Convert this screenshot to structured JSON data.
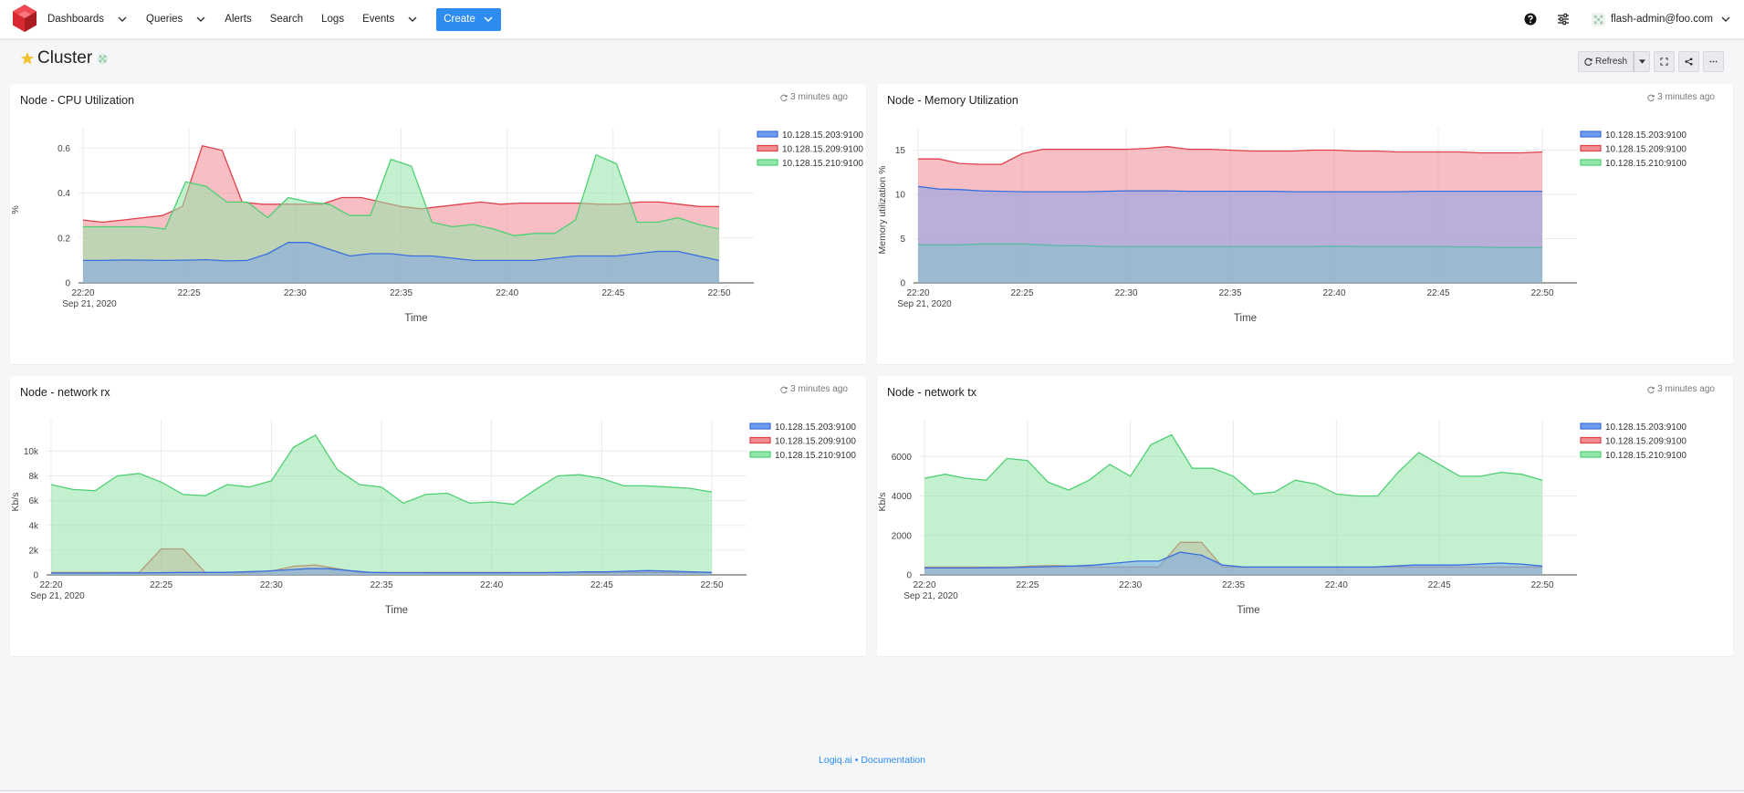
{
  "nav": {
    "items": [
      {
        "label": "Dashboards",
        "has_dropdown": true
      },
      {
        "label": "Queries",
        "has_dropdown": true
      },
      {
        "label": "Alerts",
        "has_dropdown": false
      },
      {
        "label": "Search",
        "has_dropdown": false
      },
      {
        "label": "Logs",
        "has_dropdown": false
      },
      {
        "label": "Events",
        "has_dropdown": true
      }
    ],
    "create_label": "Create",
    "user_label": "flash-admin@foo.com",
    "icons": [
      "help-icon",
      "sliders-icon"
    ]
  },
  "page": {
    "title": "Cluster",
    "refresh_label": "Refresh"
  },
  "colors": {
    "accent": "#2d8cf0",
    "series": [
      "#3b6fe0",
      "#e0414b",
      "#4fcf73"
    ],
    "fills": [
      "#6f9cf2",
      "#f08b91",
      "#92e6a8"
    ]
  },
  "panels": [
    {
      "title": "Node - CPU Utilization",
      "timestamp": "3 minutes ago",
      "chart_data": {
        "type": "area",
        "xlabel": "Time",
        "ylabel": "%",
        "x_ticks": [
          "22:20",
          "22:25",
          "22:30",
          "22:35",
          "22:40",
          "22:45",
          "22:50"
        ],
        "date_label": "Sep 21, 2020",
        "ylim": [
          0,
          0.65
        ],
        "y_ticks": [
          0,
          0.2,
          0.4,
          0.6
        ],
        "y_tick_labels": [
          "0",
          "0.2",
          "0.4",
          "0.6"
        ],
        "series": [
          {
            "name": "10.128.15.203:9100",
            "values": [
              0.1,
              0.1,
              0.102,
              0.101,
              0.1,
              0.101,
              0.103,
              0.098,
              0.1,
              0.13,
              0.18,
              0.18,
              0.15,
              0.12,
              0.13,
              0.13,
              0.12,
              0.12,
              0.11,
              0.1,
              0.1,
              0.1,
              0.1,
              0.11,
              0.12,
              0.12,
              0.12,
              0.13,
              0.14,
              0.14,
              0.12,
              0.1
            ]
          },
          {
            "name": "10.128.15.209:9100",
            "values": [
              0.28,
              0.27,
              0.28,
              0.29,
              0.3,
              0.34,
              0.61,
              0.59,
              0.36,
              0.35,
              0.35,
              0.35,
              0.35,
              0.38,
              0.38,
              0.36,
              0.34,
              0.33,
              0.34,
              0.35,
              0.36,
              0.35,
              0.355,
              0.355,
              0.355,
              0.355,
              0.35,
              0.35,
              0.36,
              0.36,
              0.35,
              0.34,
              0.34
            ]
          },
          {
            "name": "10.128.15.210:9100",
            "values": [
              0.25,
              0.25,
              0.25,
              0.25,
              0.24,
              0.45,
              0.43,
              0.36,
              0.36,
              0.29,
              0.38,
              0.36,
              0.35,
              0.3,
              0.3,
              0.55,
              0.52,
              0.27,
              0.25,
              0.26,
              0.24,
              0.21,
              0.22,
              0.22,
              0.28,
              0.57,
              0.53,
              0.27,
              0.27,
              0.29,
              0.26,
              0.24
            ]
          }
        ]
      }
    },
    {
      "title": "Node - Memory Utilization",
      "timestamp": "3 minutes ago",
      "chart_data": {
        "type": "area",
        "xlabel": "Time",
        "ylabel": "Memory utilization %",
        "x_ticks": [
          "22:20",
          "22:25",
          "22:30",
          "22:35",
          "22:40",
          "22:45",
          "22:50"
        ],
        "date_label": "Sep 21, 2020",
        "ylim": [
          0,
          16.5
        ],
        "y_ticks": [
          0,
          5,
          10,
          15
        ],
        "y_tick_labels": [
          "0",
          "5",
          "10",
          "15"
        ],
        "series": [
          {
            "name": "10.128.15.203:9100",
            "values": [
              10.9,
              10.6,
              10.55,
              10.4,
              10.35,
              10.3,
              10.3,
              10.3,
              10.3,
              10.35,
              10.4,
              10.4,
              10.4,
              10.35,
              10.35,
              10.35,
              10.35,
              10.35,
              10.3,
              10.3,
              10.3,
              10.3,
              10.3,
              10.3,
              10.35,
              10.35,
              10.35,
              10.35,
              10.35,
              10.35,
              10.35
            ]
          },
          {
            "name": "10.128.15.209:9100",
            "values": [
              14,
              14,
              13.5,
              13.4,
              13.4,
              14.6,
              15.1,
              15.1,
              15.1,
              15.1,
              15.1,
              15.2,
              15.4,
              15.1,
              15.1,
              15,
              14.9,
              14.9,
              14.9,
              15,
              15,
              14.9,
              14.9,
              14.8,
              14.8,
              14.8,
              14.8,
              14.7,
              14.7,
              14.7,
              14.8
            ]
          },
          {
            "name": "10.128.15.210:9100",
            "values": [
              4.3,
              4.3,
              4.3,
              4.4,
              4.4,
              4.4,
              4.3,
              4.2,
              4.2,
              4.1,
              4.1,
              4.1,
              4.1,
              4.1,
              4.1,
              4.1,
              4.1,
              4.1,
              4.1,
              4.1,
              4.15,
              4.1,
              4.1,
              4.1,
              4.1,
              4.1,
              4.05,
              4.05,
              4,
              4,
              4
            ]
          }
        ]
      }
    },
    {
      "title": "Node - network rx",
      "timestamp": "3 minutes ago",
      "chart_data": {
        "type": "area",
        "xlabel": "Time",
        "ylabel": "Kb/s",
        "x_ticks": [
          "22:20",
          "22:25",
          "22:30",
          "22:35",
          "22:40",
          "22:45",
          "22:50"
        ],
        "date_label": "Sep 21, 2020",
        "ylim": [
          0,
          11800
        ],
        "y_ticks": [
          0,
          2000,
          4000,
          6000,
          8000,
          10000
        ],
        "y_tick_labels": [
          "0",
          "2k",
          "4k",
          "6k",
          "8k",
          "10k"
        ],
        "series": [
          {
            "name": "10.128.15.203:9100",
            "values": [
              150,
              150,
              150,
              160,
              160,
              170,
              200,
              200,
              200,
              250,
              300,
              400,
              500,
              500,
              350,
              200,
              180,
              180,
              170,
              170,
              170,
              170,
              180,
              180,
              200,
              250,
              250,
              300,
              350,
              300,
              250,
              200
            ]
          },
          {
            "name": "10.128.15.209:9100",
            "values": [
              200,
              200,
              200,
              200,
              200,
              2100,
              2100,
              200,
              200,
              200,
              300,
              700,
              800,
              500,
              200,
              200,
              200,
              200,
              200,
              200,
              200,
              200,
              200,
              200,
              200,
              200,
              200,
              200,
              200,
              200,
              200
            ]
          },
          {
            "name": "10.128.15.210:9100",
            "values": [
              7300,
              6900,
              6800,
              8000,
              8200,
              7500,
              6500,
              6400,
              7300,
              7100,
              7600,
              10300,
              11300,
              8500,
              7300,
              7100,
              5800,
              6500,
              6600,
              5800,
              5900,
              5700,
              6900,
              8000,
              8100,
              7800,
              7200,
              7200,
              7100,
              7000,
              6700
            ]
          }
        ]
      }
    },
    {
      "title": "Node - network tx",
      "timestamp": "3 minutes ago",
      "chart_data": {
        "type": "area",
        "xlabel": "Time",
        "ylabel": "Kb/s",
        "x_ticks": [
          "22:20",
          "22:25",
          "22:30",
          "22:35",
          "22:40",
          "22:45",
          "22:50"
        ],
        "date_label": "Sep 21, 2020",
        "ylim": [
          0,
          7400
        ],
        "y_ticks": [
          0,
          2000,
          4000,
          6000
        ],
        "y_tick_labels": [
          "0",
          "2000",
          "4000",
          "6000"
        ],
        "series": [
          {
            "name": "10.128.15.203:9100",
            "values": [
              350,
              350,
              350,
              360,
              370,
              400,
              420,
              450,
              500,
              600,
              700,
              700,
              1150,
              1000,
              500,
              400,
              400,
              400,
              400,
              400,
              400,
              400,
              450,
              500,
              500,
              500,
              550,
              600,
              550,
              450
            ]
          },
          {
            "name": "10.128.15.209:9100",
            "values": [
              400,
              400,
              400,
              400,
              400,
              450,
              480,
              450,
              400,
              400,
              400,
              400,
              1650,
              1650,
              400,
              400,
              400,
              400,
              400,
              400,
              400,
              400,
              400,
              400,
              400,
              400,
              400,
              400,
              400,
              400
            ]
          },
          {
            "name": "10.128.15.210:9100",
            "values": [
              4900,
              5100,
              4900,
              4800,
              5900,
              5800,
              4700,
              4300,
              4800,
              5600,
              5000,
              6600,
              7100,
              5400,
              5400,
              5000,
              4100,
              4200,
              4800,
              4600,
              4100,
              4000,
              4000,
              5200,
              6200,
              5600,
              5000,
              5000,
              5200,
              5100,
              4800
            ]
          }
        ]
      }
    }
  ],
  "footer": {
    "link1": "Logiq.ai",
    "separator": "•",
    "link2": "Documentation"
  }
}
